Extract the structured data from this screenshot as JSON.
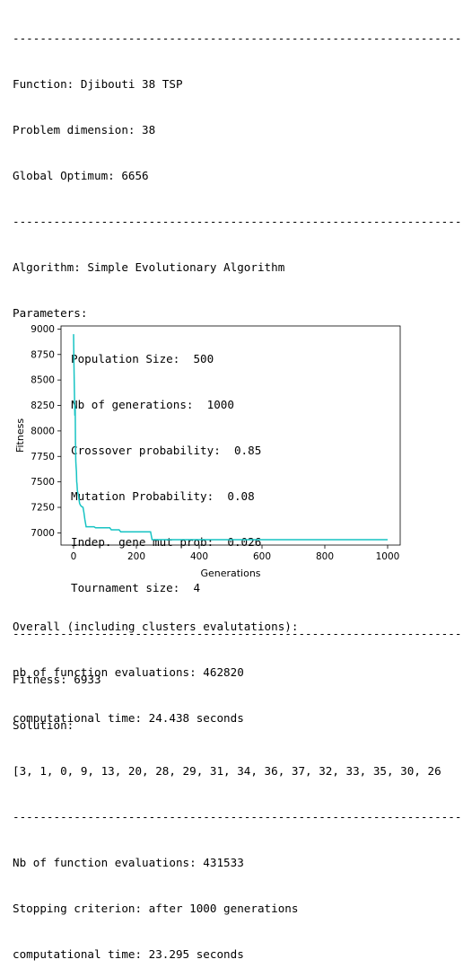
{
  "header": {
    "separator": "------------------------------------------------------------------",
    "function": "Function: Djibouti 38 TSP",
    "dimension": "Problem dimension: 38",
    "optimum": "Global Optimum: 6656"
  },
  "algorithm": {
    "name": "Algorithm: Simple Evolutionary Algorithm",
    "params_label": "Parameters:",
    "params": [
      "Population Size:  500",
      "Nb of generations:  1000",
      "Crossover probability:  0.85",
      "Mutation Probability:  0.08",
      "Indep. gene mut prob:  0.026",
      "Tournament size:  4"
    ]
  },
  "result": {
    "fitness": "Fitness: 6933",
    "solution_label": "Solution:",
    "solution": "[3, 1, 0, 9, 13, 20, 28, 29, 31, 34, 36, 37, 32, 33, 35, 30, 26"
  },
  "stats": {
    "evaluations": "Nb of function evaluations: 431533",
    "stopping": "Stopping criterion: after 1000 generations",
    "time": "computational time: 23.295 seconds"
  },
  "chart_data": {
    "type": "line",
    "xlabel": "Generations",
    "ylabel": "Fitness",
    "xlim": [
      -40,
      1040
    ],
    "ylim": [
      6880,
      9030
    ],
    "x_ticks": [
      0,
      200,
      400,
      600,
      800,
      1000
    ],
    "y_ticks": [
      7000,
      7250,
      7500,
      7750,
      8000,
      8250,
      8500,
      8750,
      9000
    ],
    "line_color": "#17c3c3",
    "grid": false,
    "series": [
      {
        "x": [
          0,
          1,
          2,
          3,
          4,
          5,
          6,
          7,
          8,
          9,
          10,
          11,
          12,
          13,
          15,
          17,
          19,
          22,
          25,
          30,
          33,
          36,
          40,
          65,
          70,
          115,
          120,
          145,
          150,
          245,
          250,
          1000
        ],
        "y": [
          8950,
          8720,
          8500,
          8350,
          8150,
          8250,
          7900,
          7700,
          7650,
          7600,
          7500,
          7480,
          7420,
          7400,
          7380,
          7330,
          7290,
          7270,
          7260,
          7250,
          7200,
          7130,
          7060,
          7060,
          7050,
          7050,
          7030,
          7030,
          7010,
          7010,
          6933,
          6933
        ]
      }
    ]
  },
  "overall": {
    "title": "Overall (including clusters evalutations):",
    "evaluations": "nb of function evaluations: 462820",
    "time": "computational time: 24.438 seconds"
  }
}
